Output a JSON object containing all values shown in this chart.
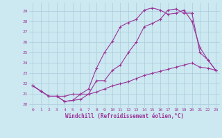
{
  "bg_color": "#cce8f0",
  "grid_color": "#aaccdd",
  "line_color": "#993399",
  "xlabel": "Windchill (Refroidissement éolien,°C)",
  "xlabel_color": "#993399",
  "tick_color": "#993399",
  "xlim": [
    -0.5,
    23.5
  ],
  "ylim": [
    19.7,
    29.8
  ],
  "yticks": [
    20,
    21,
    22,
    23,
    24,
    25,
    26,
    27,
    28,
    29
  ],
  "xticks": [
    0,
    1,
    2,
    3,
    4,
    5,
    6,
    7,
    8,
    9,
    10,
    11,
    12,
    13,
    14,
    15,
    16,
    17,
    18,
    19,
    20,
    21,
    22,
    23
  ],
  "line1_x": [
    0,
    1,
    2,
    3,
    4,
    5,
    6,
    7,
    8,
    9,
    10,
    11,
    12,
    13,
    14,
    15,
    16,
    17,
    18,
    19,
    20,
    21,
    22,
    23
  ],
  "line1_y": [
    21.8,
    21.3,
    20.8,
    20.8,
    20.3,
    20.4,
    20.5,
    21.0,
    22.3,
    22.3,
    23.3,
    23.8,
    25.0,
    26.0,
    27.5,
    27.8,
    28.2,
    29.1,
    29.2,
    28.8,
    28.8,
    25.0,
    24.3,
    23.3
  ],
  "line2_x": [
    0,
    1,
    2,
    3,
    4,
    5,
    6,
    7,
    8,
    9,
    10,
    11,
    12,
    13,
    14,
    15,
    16,
    17,
    18,
    19,
    20,
    21,
    22,
    23
  ],
  "line2_y": [
    21.8,
    21.3,
    20.8,
    20.8,
    20.8,
    21.0,
    21.0,
    21.0,
    21.2,
    21.5,
    21.8,
    22.0,
    22.2,
    22.5,
    22.8,
    23.0,
    23.2,
    23.4,
    23.6,
    23.8,
    24.0,
    23.6,
    23.5,
    23.3
  ],
  "line3_x": [
    0,
    1,
    2,
    3,
    4,
    5,
    6,
    7,
    8,
    9,
    10,
    11,
    12,
    13,
    14,
    15,
    16,
    17,
    18,
    19,
    20,
    21,
    22,
    23
  ],
  "line3_y": [
    21.8,
    21.3,
    20.8,
    20.8,
    20.3,
    20.4,
    21.0,
    21.5,
    23.5,
    25.0,
    26.1,
    27.5,
    27.9,
    28.2,
    29.1,
    29.3,
    29.1,
    28.7,
    28.8,
    29.1,
    28.0,
    25.5,
    24.3,
    23.3
  ]
}
